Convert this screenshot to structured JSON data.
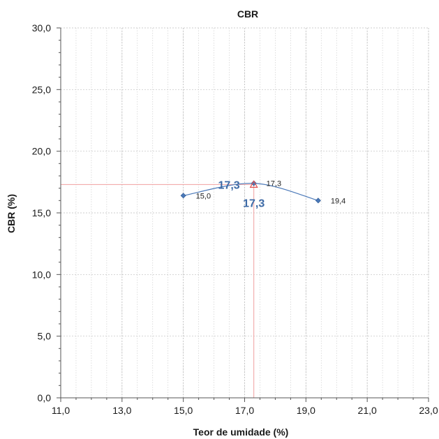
{
  "chart_data": {
    "type": "line",
    "title": "CBR",
    "xlabel": "Teor de umidade  (%)",
    "ylabel": "CBR (%)",
    "xlim": [
      11.0,
      23.0
    ],
    "ylim": [
      0.0,
      30.0
    ],
    "xticks": [
      "11,0",
      "13,0",
      "15,0",
      "17,0",
      "19,0",
      "21,0",
      "23,0"
    ],
    "yticks": [
      "0,0",
      "5,0",
      "10,0",
      "15,0",
      "20,0",
      "25,0",
      "30,0"
    ],
    "grid": true,
    "series": [
      {
        "x": [
          15.0,
          17.3,
          19.4
        ],
        "y": [
          16.4,
          17.4,
          16.0
        ],
        "point_labels": [
          "15,0",
          "17,3",
          "19,4"
        ],
        "color": "#4a78b8",
        "marker": "diamond",
        "smooth": true
      }
    ],
    "optimum": {
      "x": 17.3,
      "y": 17.3,
      "x_label": "17,3",
      "y_label": "17,3",
      "marker": "triangle",
      "marker_color": "#e05050",
      "guide_color": "#f0a0a0"
    }
  }
}
